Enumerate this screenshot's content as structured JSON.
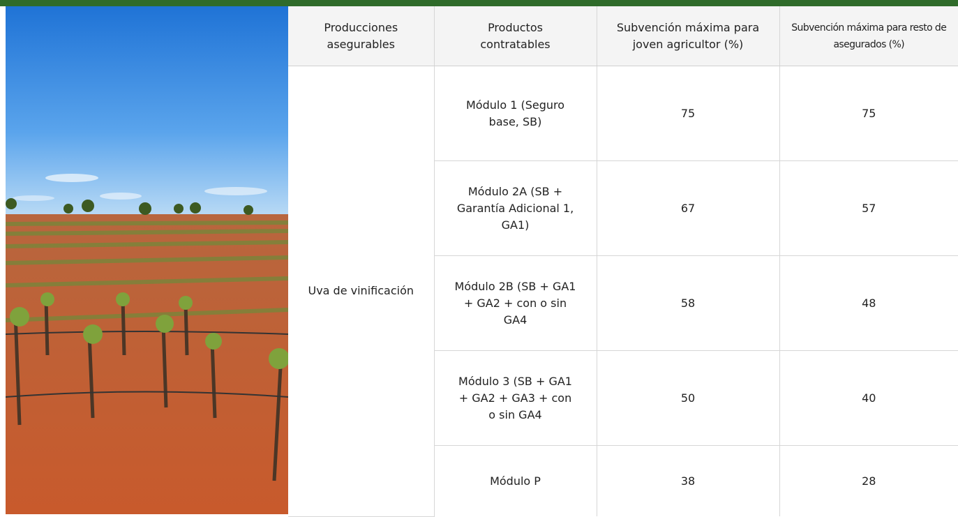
{
  "table": {
    "headers": [
      "Producciones asegurables",
      "Productos contratables",
      "Subvención máxima para joven agricultor (%)",
      "Subvención máxima para resto de asegurados (%)"
    ],
    "production": "Uva de vinificación",
    "rows": [
      [
        "Módulo 1 (Seguro base, SB)",
        75,
        75
      ],
      [
        "Módulo 2A (SB + Garantía Adicional 1, GA1)",
        67,
        57
      ],
      [
        "Módulo 2B (SB + GA1 + GA2 + con o sin GA4",
        58,
        48
      ],
      [
        "Módulo 3 (SB + GA1 + GA2 + GA3 + con o sin GA4",
        50,
        40
      ],
      [
        "Módulo P",
        38,
        28
      ]
    ]
  }
}
